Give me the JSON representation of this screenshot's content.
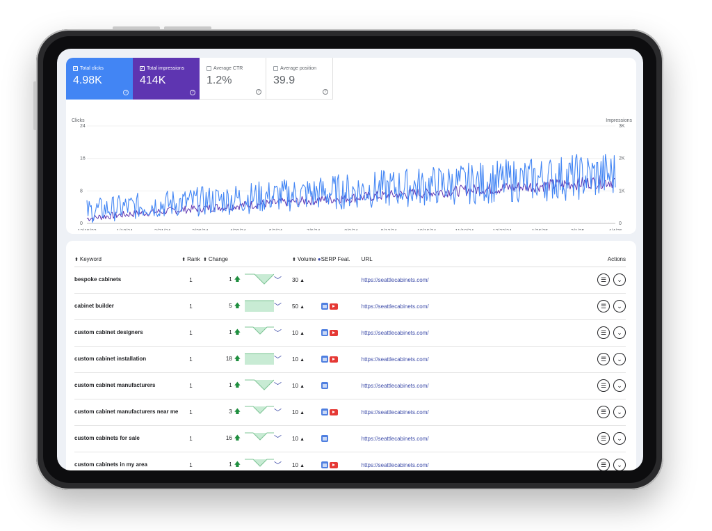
{
  "metrics": [
    {
      "label": "Total clicks",
      "value": "4.98K",
      "checked": true
    },
    {
      "label": "Total impressions",
      "value": "414K",
      "checked": true
    },
    {
      "label": "Average CTR",
      "value": "1.2%",
      "checked": false
    },
    {
      "label": "Average position",
      "value": "39.9",
      "checked": false
    }
  ],
  "colors": {
    "clicks": "#4285f4",
    "impressions": "#5e35b1",
    "link": "#3c4ba8",
    "up": "#1e8e3e",
    "spark": "#c8ebd4"
  },
  "chart_data": {
    "type": "line",
    "y_left_label": "Clicks",
    "y_right_label": "Impressions",
    "y_left_ticks": [
      "0",
      "8",
      "16",
      "24"
    ],
    "y_right_ticks": [
      "0",
      "1K",
      "2K",
      "3K"
    ],
    "ylim_left": [
      0,
      24
    ],
    "ylim_right": [
      0,
      3000
    ],
    "x_ticks": [
      "12/15/23",
      "1/18/24",
      "2/21/24",
      "3/26/24",
      "4/29/24",
      "6/2/24",
      "7/6/24",
      "8/9/24",
      "9/12/24",
      "10/16/24",
      "11/19/24",
      "12/23/24",
      "1/26/25",
      "3/1/25",
      "4/4/25"
    ],
    "series": [
      {
        "name": "Clicks",
        "axis": "left",
        "start": 3,
        "end": 12,
        "volatility": 5
      },
      {
        "name": "Impressions",
        "axis": "right",
        "start": 150,
        "end": 1300,
        "volatility": 170
      }
    ]
  },
  "table": {
    "headers": {
      "keyword": "Keyword",
      "rank": "Rank",
      "change": "Change",
      "volume": "Volume",
      "serp": "SERP Feat.",
      "url": "URL",
      "actions": "Actions"
    },
    "rows": [
      {
        "keyword": "bespoke cabinets",
        "rank": "1",
        "change": "1",
        "spark": "dip",
        "volume": "30",
        "serp": [],
        "url": "https://seattlecabinets.com/"
      },
      {
        "keyword": "cabinet builder",
        "rank": "1",
        "change": "5",
        "spark": "flat",
        "volume": "50",
        "serp": [
          "gmb",
          "yt"
        ],
        "url": "https://seattlecabinets.com/"
      },
      {
        "keyword": "custom cabinet designers",
        "rank": "1",
        "change": "1",
        "spark": "notch",
        "volume": "10",
        "serp": [
          "gmb",
          "yt"
        ],
        "url": "https://seattlecabinets.com/"
      },
      {
        "keyword": "custom cabinet installation",
        "rank": "1",
        "change": "18",
        "spark": "flat",
        "volume": "10",
        "serp": [
          "gmb",
          "yt"
        ],
        "url": "https://seattlecabinets.com/"
      },
      {
        "keyword": "custom cabinet manufacturers",
        "rank": "1",
        "change": "1",
        "spark": "dip",
        "volume": "10",
        "serp": [
          "gmb"
        ],
        "url": "https://seattlecabinets.com/"
      },
      {
        "keyword": "custom cabinet manufacturers near me",
        "rank": "1",
        "change": "3",
        "spark": "notch",
        "volume": "10",
        "serp": [
          "gmb",
          "yt"
        ],
        "url": "https://seattlecabinets.com/"
      },
      {
        "keyword": "custom cabinets for sale",
        "rank": "1",
        "change": "16",
        "spark": "notch",
        "volume": "10",
        "serp": [
          "gmb"
        ],
        "url": "https://seattlecabinets.com/"
      },
      {
        "keyword": "custom cabinets in my area",
        "rank": "1",
        "change": "1",
        "spark": "notch",
        "volume": "10",
        "serp": [
          "gmb",
          "yt"
        ],
        "url": "https://seattlecabinets.com/"
      }
    ]
  }
}
